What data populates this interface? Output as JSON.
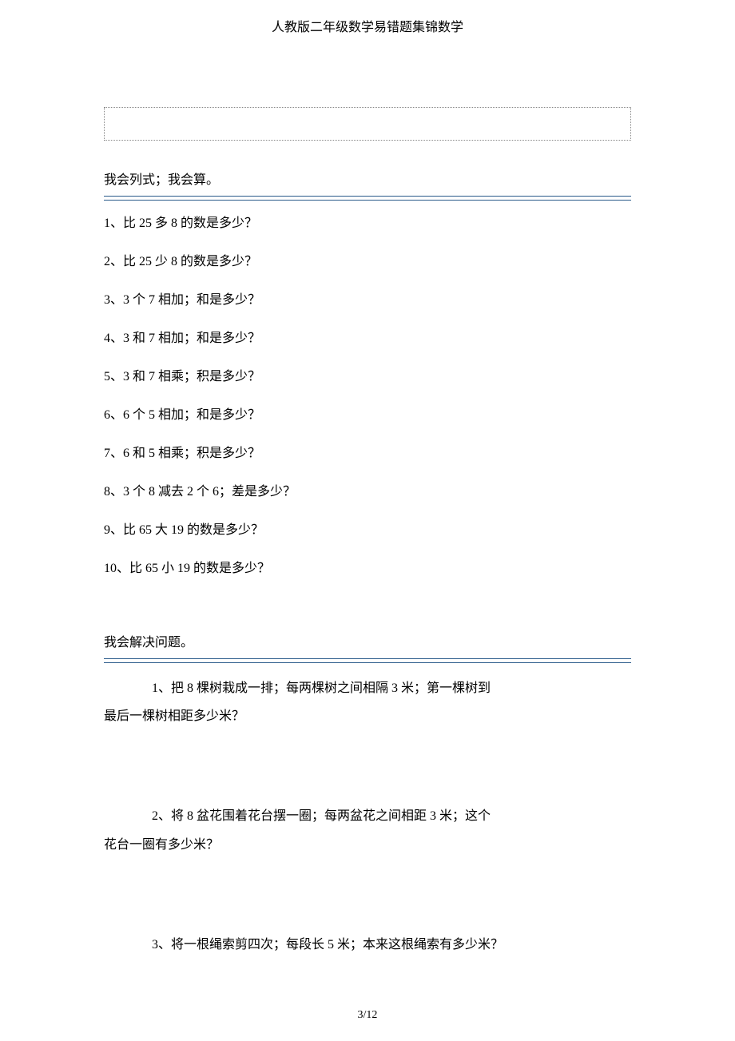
{
  "header_title": "人教版二年级数学易错题集锦数学",
  "section1_intro": "我会列式；我会算。",
  "section1_items": [
    "1、比 25 多 8 的数是多少？",
    "2、比 25 少 8 的数是多少？",
    "3、3 个 7 相加；和是多少？",
    "4、3 和 7 相加；和是多少？",
    "5、3 和 7 相乘；积是多少？",
    "6、6 个 5 相加；和是多少？",
    "7、6 和 5 相乘；积是多少？",
    "8、3 个 8 减去 2 个 6；差是多少？",
    "9、比 65 大 19 的数是多少？",
    "10、比 65 小 19 的数是多少？"
  ],
  "section2_intro": "我会解决问题。",
  "word_problems": {
    "p1_l1": "1、把 8 棵树栽成一排；每两棵树之间相隔 3 米；第一棵树到",
    "p1_l2": "最后一棵树相距多少米？",
    "p2_l1": "2、将 8 盆花围着花台摆一圈；每两盆花之间相距 3 米；这个",
    "p2_l2": "花台一圈有多少米？",
    "p3_l1": "3、将一根绳索剪四次；每段长 5 米；本来这根绳索有多少米？"
  },
  "page_number": "3/12",
  "rule_color": "#2a5a8a"
}
